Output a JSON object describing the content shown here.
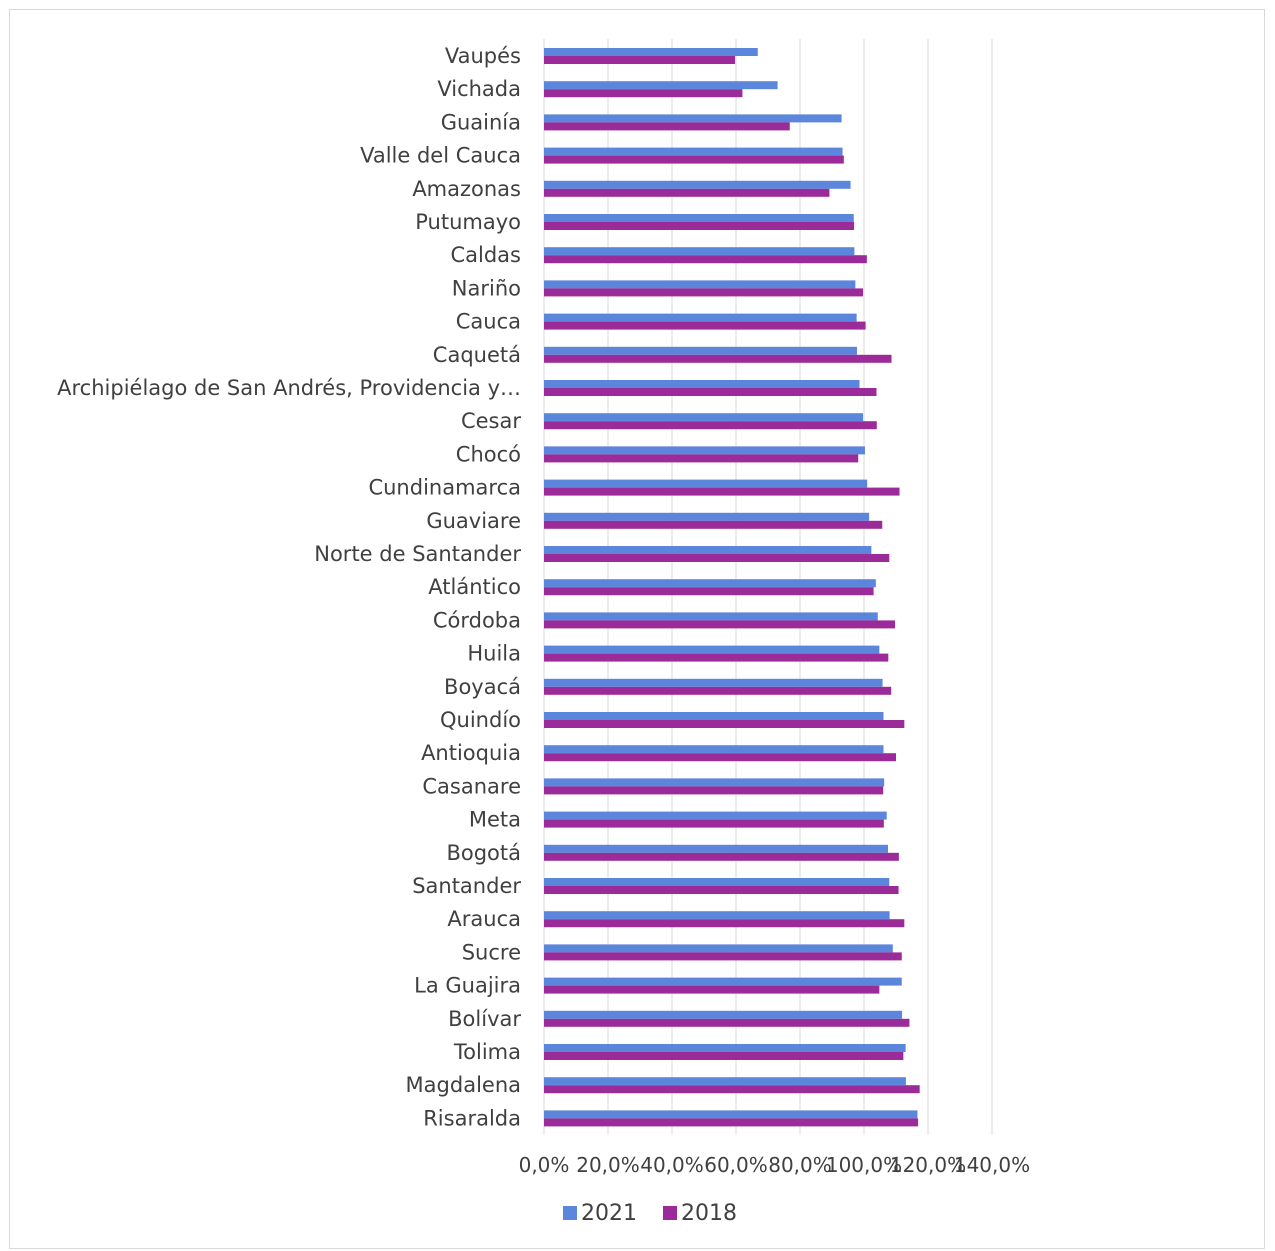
{
  "chart_data": {
    "type": "bar",
    "orientation": "horizontal",
    "title": "",
    "xlabel": "",
    "ylabel": "",
    "xlim": [
      0,
      140
    ],
    "x_ticks": [
      "0,0%",
      "20,0%",
      "40,0%",
      "60,0%",
      "80,0%",
      "100,0%",
      "120,0%",
      "140,0%"
    ],
    "grid": true,
    "legend_position": "bottom",
    "categories": [
      "Vaupés",
      "Vichada",
      "Guainía",
      "Valle del Cauca",
      "Amazonas",
      "Putumayo",
      "Caldas",
      "Nariño",
      "Cauca",
      "Caquetá",
      "Archipiélago de San Andrés, Providencia y…",
      "Cesar",
      "Chocó",
      "Cundinamarca",
      "Guaviare",
      "Norte de Santander",
      "Atlántico",
      "Córdoba",
      "Huila",
      "Boyacá",
      "Quindío",
      "Antioquia",
      "Casanare",
      "Meta",
      "Bogotá",
      "Santander",
      "Arauca",
      "Sucre",
      "La Guajira",
      "Bolívar",
      "Tolima",
      "Magdalena",
      "Risaralda"
    ],
    "series": [
      {
        "name": "2021",
        "color": "#5b86dc",
        "values": [
          66.8,
          73.0,
          93.0,
          93.3,
          95.8,
          96.8,
          97.0,
          97.3,
          97.7,
          97.8,
          98.6,
          99.7,
          100.3,
          101.0,
          101.6,
          102.3,
          103.7,
          104.3,
          104.8,
          105.8,
          106.1,
          106.1,
          106.3,
          107.1,
          107.5,
          107.9,
          108.0,
          109.0,
          111.8,
          111.9,
          113.0,
          113.1,
          116.7
        ]
      },
      {
        "name": "2018",
        "color": "#9c2b9a",
        "values": [
          59.7,
          62.0,
          76.8,
          93.7,
          89.2,
          96.9,
          100.9,
          99.7,
          100.5,
          108.6,
          103.9,
          104.0,
          98.2,
          111.1,
          105.7,
          107.9,
          103.0,
          109.7,
          107.6,
          108.5,
          112.6,
          110.0,
          106.0,
          106.2,
          110.9,
          110.8,
          112.6,
          111.8,
          104.8,
          114.2,
          112.3,
          117.4,
          116.9
        ]
      }
    ]
  }
}
